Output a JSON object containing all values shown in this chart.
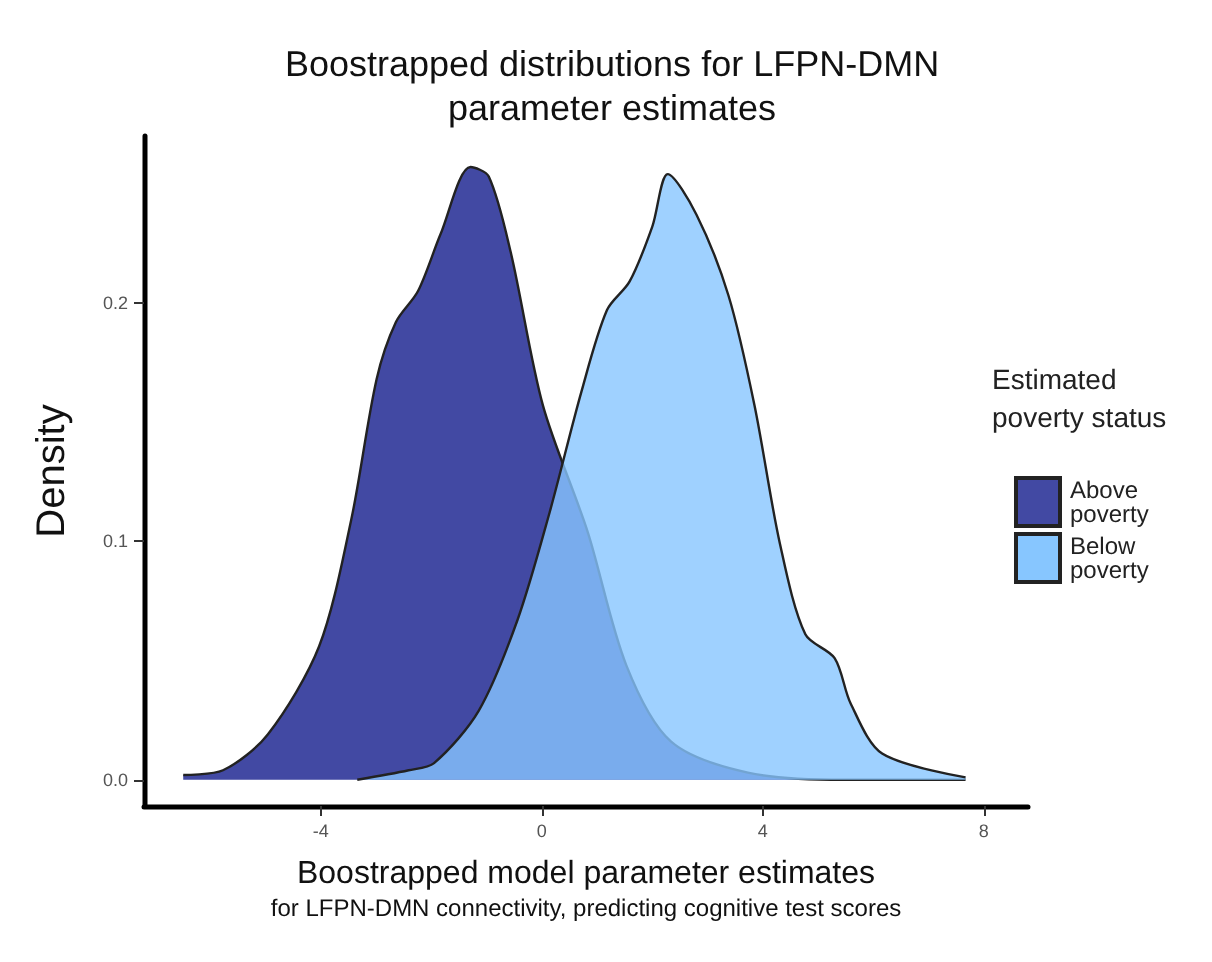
{
  "chart_data": {
    "type": "area",
    "title": "Boostrapped distributions for LFPN-DMN\nparameter estimates",
    "xlabel": "Boostrapped model parameter estimates",
    "ylabel": "Density",
    "legend_title": "Estimated\npoverty status",
    "annotations": [
      "for LFPN-DMN connectivity, predicting cognitive test scores"
    ],
    "legend": "right",
    "grid": false,
    "xlim": [
      -7.2,
      8.8
    ],
    "xticks": [
      -4,
      0,
      4,
      8
    ],
    "ylim": [
      -0.011,
      0.27
    ],
    "yticks": [
      {
        "value": 0,
        "label": "0.0"
      },
      {
        "value": 0.1,
        "label": "0.1"
      },
      {
        "value": 0.2,
        "label": "0.2"
      }
    ],
    "series": [
      {
        "name": "Above poverty",
        "color": "#4249a3",
        "x": [
          -6.49,
          -5.77,
          -4.96,
          -4.03,
          -3.45,
          -2.99,
          -2.64,
          -2.24,
          -1.83,
          -1.29,
          -0.96,
          -0.56,
          0.02,
          0.83,
          1.53,
          2.34,
          3.73,
          5.47,
          7.67
        ],
        "values": [
          0.002,
          0.004,
          0.019,
          0.056,
          0.109,
          0.168,
          0.192,
          0.205,
          0.229,
          0.257,
          0.253,
          0.221,
          0.157,
          0.104,
          0.048,
          0.016,
          0.003,
          0,
          0
        ]
      },
      {
        "name": "Below poverty",
        "color": "#87c6ff",
        "x": [
          -3.34,
          -2.41,
          -1.95,
          -1.14,
          -0.44,
          0.14,
          0.72,
          1.18,
          1.59,
          2.0,
          2.28,
          2.8,
          3.38,
          3.85,
          4.31,
          4.77,
          5.3,
          5.59,
          6.16,
          7.67
        ],
        "values": [
          0,
          0.004,
          0.007,
          0.029,
          0.067,
          0.112,
          0.163,
          0.197,
          0.209,
          0.232,
          0.254,
          0.237,
          0.203,
          0.157,
          0.099,
          0.061,
          0.051,
          0.032,
          0.011,
          0.001
        ]
      }
    ]
  }
}
